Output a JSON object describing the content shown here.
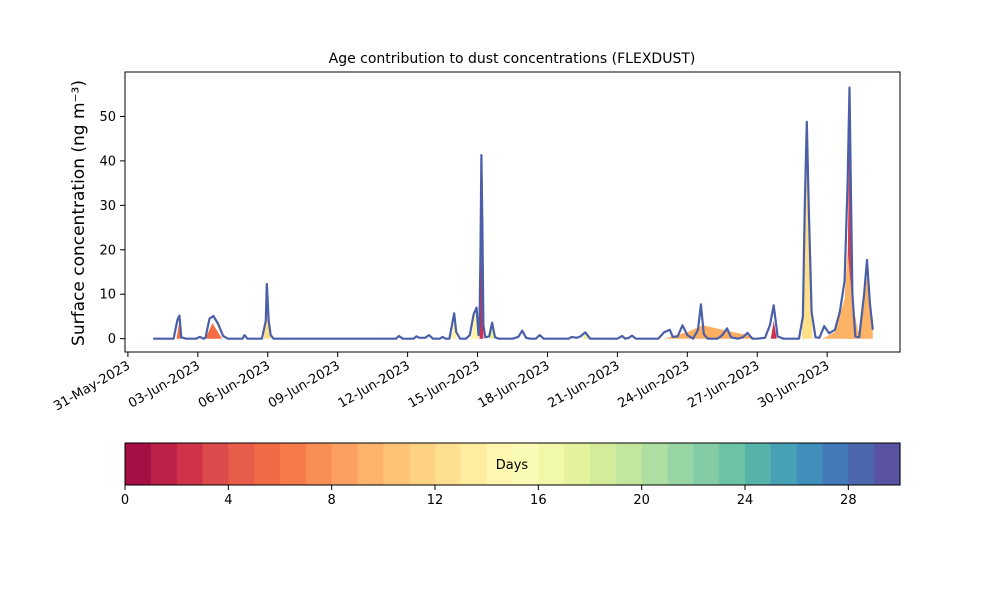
{
  "chart_data": {
    "type": "area",
    "title": "Age contribution to dust concentrations (FLEXDUST)",
    "ylabel": "Surface concentration (ng m⁻³)",
    "xlabel": "",
    "ylim": [
      -3,
      60
    ],
    "yticks": [
      0,
      10,
      20,
      30,
      40,
      50
    ],
    "xlim": [
      "2023-05-30T21:00",
      "2023-07-03T03:00"
    ],
    "xticks": [
      "31-May-2023",
      "03-Jun-2023",
      "06-Jun-2023",
      "09-Jun-2023",
      "12-Jun-2023",
      "15-Jun-2023",
      "18-Jun-2023",
      "21-Jun-2023",
      "24-Jun-2023",
      "27-Jun-2023",
      "30-Jun-2023"
    ],
    "grid": false,
    "series": [
      {
        "role": "total",
        "color": "#4a5fa8",
        "points": [
          [
            "2023-06-01T02:00",
            0
          ],
          [
            "2023-06-01T23:00",
            0
          ],
          [
            "2023-06-02T03:00",
            4.2
          ],
          [
            "2023-06-02T05:00",
            5.2
          ],
          [
            "2023-06-02T07:00",
            0.3
          ],
          [
            "2023-06-02T12:00",
            0
          ],
          [
            "2023-06-02T22:00",
            0
          ],
          [
            "2023-06-03T02:00",
            0.4
          ],
          [
            "2023-06-03T06:00",
            0
          ],
          [
            "2023-06-03T08:00",
            0.3
          ],
          [
            "2023-06-03T12:00",
            4.5
          ],
          [
            "2023-06-03T16:00",
            5.1
          ],
          [
            "2023-06-03T21:00",
            3.3
          ],
          [
            "2023-06-04T02:00",
            0.6
          ],
          [
            "2023-06-04T07:00",
            0
          ],
          [
            "2023-06-04T22:00",
            0
          ],
          [
            "2023-06-05T00:00",
            0.8
          ],
          [
            "2023-06-05T03:00",
            0
          ],
          [
            "2023-06-05T18:00",
            0
          ],
          [
            "2023-06-05T22:00",
            4
          ],
          [
            "2023-06-05T23:00",
            12.3
          ],
          [
            "2023-06-06T01:00",
            4
          ],
          [
            "2023-06-06T03:00",
            0.8
          ],
          [
            "2023-06-06T06:00",
            0
          ],
          [
            "2023-06-11T12:00",
            0
          ],
          [
            "2023-06-11T15:00",
            0.6
          ],
          [
            "2023-06-11T19:00",
            0
          ],
          [
            "2023-06-12T06:00",
            0
          ],
          [
            "2023-06-12T09:00",
            0.5
          ],
          [
            "2023-06-12T12:00",
            0.2
          ],
          [
            "2023-06-12T18:00",
            0.2
          ],
          [
            "2023-06-12T22:00",
            0.8
          ],
          [
            "2023-06-13T02:00",
            0
          ],
          [
            "2023-06-13T09:00",
            0
          ],
          [
            "2023-06-13T12:00",
            0.4
          ],
          [
            "2023-06-13T15:00",
            0
          ],
          [
            "2023-06-13T19:00",
            0
          ],
          [
            "2023-06-14T00:00",
            5.7
          ],
          [
            "2023-06-14T02:00",
            1.5
          ],
          [
            "2023-06-14T06:00",
            0
          ],
          [
            "2023-06-14T12:00",
            0
          ],
          [
            "2023-06-14T16:00",
            0.8
          ],
          [
            "2023-06-14T20:00",
            5.5
          ],
          [
            "2023-06-14T23:00",
            7
          ],
          [
            "2023-06-15T01:00",
            0.8
          ],
          [
            "2023-06-15T02:00",
            3
          ],
          [
            "2023-06-15T03:00",
            20
          ],
          [
            "2023-06-15T04:00",
            41.3
          ],
          [
            "2023-06-15T05:00",
            25
          ],
          [
            "2023-06-15T06:00",
            3
          ],
          [
            "2023-06-15T08:00",
            0.3
          ],
          [
            "2023-06-15T12:00",
            0.5
          ],
          [
            "2023-06-15T15:00",
            3.6
          ],
          [
            "2023-06-15T18:00",
            0.3
          ],
          [
            "2023-06-15T22:00",
            0
          ],
          [
            "2023-06-16T12:00",
            0
          ],
          [
            "2023-06-16T18:00",
            0.4
          ],
          [
            "2023-06-16T22:00",
            1.8
          ],
          [
            "2023-06-17T02:00",
            0.2
          ],
          [
            "2023-06-17T06:00",
            0
          ],
          [
            "2023-06-17T12:00",
            0
          ],
          [
            "2023-06-17T16:00",
            0.8
          ],
          [
            "2023-06-17T20:00",
            0
          ],
          [
            "2023-06-18T22:00",
            0
          ],
          [
            "2023-06-19T01:00",
            0.4
          ],
          [
            "2023-06-19T06:00",
            0.2
          ],
          [
            "2023-06-19T10:00",
            0.5
          ],
          [
            "2023-06-19T15:00",
            1.4
          ],
          [
            "2023-06-19T20:00",
            0
          ],
          [
            "2023-06-21T00:00",
            0
          ],
          [
            "2023-06-21T05:00",
            0.6
          ],
          [
            "2023-06-21T08:00",
            0
          ],
          [
            "2023-06-21T12:00",
            0.2
          ],
          [
            "2023-06-21T15:00",
            0.7
          ],
          [
            "2023-06-21T19:00",
            0
          ],
          [
            "2023-06-22T18:00",
            0
          ],
          [
            "2023-06-23T00:00",
            1.4
          ],
          [
            "2023-06-23T06:00",
            2
          ],
          [
            "2023-06-23T09:00",
            0.4
          ],
          [
            "2023-06-23T14:00",
            0.5
          ],
          [
            "2023-06-23T19:00",
            3
          ],
          [
            "2023-06-24T00:00",
            0.8
          ],
          [
            "2023-06-24T06:00",
            0
          ],
          [
            "2023-06-24T11:00",
            2
          ],
          [
            "2023-06-24T14:00",
            7.7
          ],
          [
            "2023-06-24T17:00",
            1
          ],
          [
            "2023-06-24T21:00",
            0
          ],
          [
            "2023-06-25T07:00",
            0
          ],
          [
            "2023-06-25T12:00",
            0.8
          ],
          [
            "2023-06-25T17:00",
            2.3
          ],
          [
            "2023-06-25T21:00",
            0.3
          ],
          [
            "2023-06-26T04:00",
            0
          ],
          [
            "2023-06-26T09:00",
            0.3
          ],
          [
            "2023-06-26T14:00",
            1.3
          ],
          [
            "2023-06-26T19:00",
            0
          ],
          [
            "2023-06-27T00:00",
            0
          ],
          [
            "2023-06-27T08:00",
            0.2
          ],
          [
            "2023-06-27T13:00",
            3
          ],
          [
            "2023-06-27T17:00",
            7.5
          ],
          [
            "2023-06-27T21:00",
            0.5
          ],
          [
            "2023-06-28T03:00",
            0
          ],
          [
            "2023-06-28T19:00",
            0
          ],
          [
            "2023-06-28T23:00",
            5
          ],
          [
            "2023-06-29T01:00",
            30
          ],
          [
            "2023-06-29T03:00",
            48.8
          ],
          [
            "2023-06-29T05:00",
            30
          ],
          [
            "2023-06-29T08:00",
            6
          ],
          [
            "2023-06-29T12:00",
            0.3
          ],
          [
            "2023-06-29T16:00",
            0.2
          ],
          [
            "2023-06-29T21:00",
            2.8
          ],
          [
            "2023-06-30T02:00",
            1.2
          ],
          [
            "2023-06-30T08:00",
            2
          ],
          [
            "2023-06-30T13:00",
            6
          ],
          [
            "2023-06-30T18:00",
            13
          ],
          [
            "2023-06-30T21:00",
            35
          ],
          [
            "2023-06-30T23:00",
            56.5
          ],
          [
            "2023-07-01T00:00",
            40
          ],
          [
            "2023-07-01T02:00",
            10
          ],
          [
            "2023-07-01T05:00",
            0.5
          ],
          [
            "2023-07-01T09:00",
            0.3
          ],
          [
            "2023-07-01T14:00",
            10
          ],
          [
            "2023-07-01T17:00",
            17.7
          ],
          [
            "2023-07-01T20:00",
            8
          ],
          [
            "2023-07-01T23:00",
            2
          ]
        ]
      }
    ],
    "age_fills": [
      {
        "days": 1.5,
        "color": "#d0304e",
        "points": [
          [
            "2023-06-15T02:00",
            0
          ],
          [
            "2023-06-15T04:00",
            22
          ],
          [
            "2023-06-15T06:00",
            0
          ]
        ]
      },
      {
        "days": 1.5,
        "color": "#d0304e",
        "points": [
          [
            "2023-06-27T14:00",
            0
          ],
          [
            "2023-06-27T17:00",
            4
          ],
          [
            "2023-06-27T20:00",
            0
          ]
        ]
      },
      {
        "days": 2.5,
        "color": "#d53e4f",
        "points": [
          [
            "2023-06-30T20:00",
            0
          ],
          [
            "2023-06-30T23:00",
            48
          ],
          [
            "2023-07-01T02:00",
            0
          ]
        ]
      },
      {
        "days": 5.5,
        "color": "#f46d43",
        "points": [
          [
            "2023-06-02T02:00",
            0
          ],
          [
            "2023-06-02T05:00",
            4
          ],
          [
            "2023-06-02T07:00",
            0
          ]
        ]
      },
      {
        "days": 5.5,
        "color": "#f46d43",
        "points": [
          [
            "2023-06-03T08:00",
            0
          ],
          [
            "2023-06-03T15:00",
            3.5
          ],
          [
            "2023-06-04T01:00",
            0
          ]
        ]
      },
      {
        "days": 8.5,
        "color": "#fdae61",
        "points": [
          [
            "2023-06-23T00:00",
            0
          ],
          [
            "2023-06-24T00:00",
            1.5
          ],
          [
            "2023-06-24T16:00",
            3
          ],
          [
            "2023-06-25T17:00",
            1.8
          ],
          [
            "2023-06-26T14:00",
            0.8
          ],
          [
            "2023-06-27T00:00",
            0
          ]
        ]
      },
      {
        "days": 9.5,
        "color": "#fdb366",
        "points": [
          [
            "2023-06-29T19:00",
            0
          ],
          [
            "2023-06-30T08:00",
            1.5
          ],
          [
            "2023-06-30T18:00",
            9
          ],
          [
            "2023-06-30T21:00",
            20
          ],
          [
            "2023-07-01T02:00",
            8
          ],
          [
            "2023-07-01T09:00",
            0.5
          ],
          [
            "2023-07-01T17:00",
            14
          ],
          [
            "2023-07-01T23:00",
            2
          ]
        ]
      },
      {
        "days": 11.5,
        "color": "#fee08b",
        "points": [
          [
            "2023-06-05T20:00",
            0
          ],
          [
            "2023-06-05T23:00",
            9
          ],
          [
            "2023-06-06T03:00",
            0
          ]
        ]
      },
      {
        "days": 11.5,
        "color": "#fee08b",
        "points": [
          [
            "2023-06-28T22:00",
            0
          ],
          [
            "2023-06-29T01:00",
            30
          ],
          [
            "2023-06-29T03:00",
            44
          ],
          [
            "2023-06-29T05:00",
            28
          ],
          [
            "2023-06-29T09:00",
            0
          ]
        ]
      },
      {
        "days": 13.5,
        "color": "#fff3a8",
        "points": [
          [
            "2023-06-13T21:00",
            0
          ],
          [
            "2023-06-14T00:00",
            4.5
          ],
          [
            "2023-06-14T03:00",
            0
          ]
        ]
      },
      {
        "days": 13.5,
        "color": "#fff3a8",
        "points": [
          [
            "2023-06-14T17:00",
            0
          ],
          [
            "2023-06-14T22:00",
            6
          ],
          [
            "2023-06-15T01:00",
            0
          ]
        ]
      },
      {
        "days": 18.5,
        "color": "#e6f598",
        "points": [
          [
            "2023-06-15T12:00",
            0
          ],
          [
            "2023-06-15T15:00",
            2.8
          ],
          [
            "2023-06-15T18:00",
            0
          ]
        ]
      },
      {
        "days": 18.5,
        "color": "#e6f598",
        "points": [
          [
            "2023-06-19T12:00",
            0
          ],
          [
            "2023-06-19T15:00",
            1.1
          ],
          [
            "2023-06-19T19:00",
            0
          ]
        ]
      }
    ],
    "colorbar": {
      "label": "Days",
      "min": 0,
      "max": 30,
      "ticks": [
        0,
        4,
        8,
        12,
        16,
        20,
        24,
        28
      ],
      "colors": [
        "#a50f45",
        "#bc2147",
        "#cf334a",
        "#dd4a4b",
        "#e75d4a",
        "#f06a45",
        "#f67a4a",
        "#f98f57",
        "#fca062",
        "#fdb36a",
        "#fec374",
        "#fed282",
        "#fee090",
        "#feec9f",
        "#fff7b0",
        "#f9fbb5",
        "#f1f8aa",
        "#e4f39b",
        "#d3ec9b",
        "#c3e69f",
        "#aedea2",
        "#98d5a4",
        "#83cca5",
        "#6cc2a5",
        "#58b2aa",
        "#47a0b3",
        "#3f8ebb",
        "#4279b6",
        "#4c67ae",
        "#5a53a4"
      ]
    }
  }
}
